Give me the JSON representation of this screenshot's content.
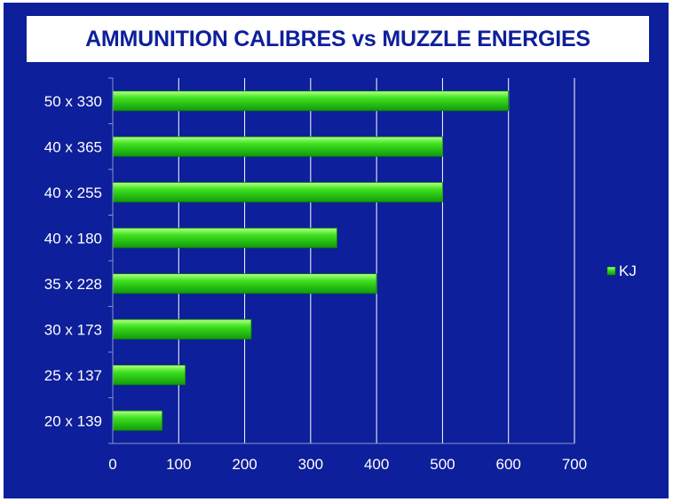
{
  "chart_data": {
    "type": "bar",
    "orientation": "horizontal",
    "title": "AMMUNITION CALIBRES vs MUZZLE ENERGIES",
    "categories": [
      "20 x 139",
      "25 x 137",
      "30 x 173",
      "35 x 228",
      "40 x 180",
      "40 x 255",
      "40 x 365",
      "50 x 330"
    ],
    "series": [
      {
        "name": "KJ",
        "values": [
          75,
          110,
          210,
          400,
          340,
          500,
          500,
          600
        ]
      }
    ],
    "xlim": [
      0,
      700
    ],
    "xticks": [
      0,
      100,
      200,
      300,
      400,
      500,
      600,
      700
    ],
    "grid": "vertical",
    "legend": "right",
    "colors": {
      "background": "#0d1f9a",
      "title_text": "#0d1f9a",
      "bar": "#22cc11",
      "text": "#ffffff",
      "grid": "#ffffff"
    }
  }
}
